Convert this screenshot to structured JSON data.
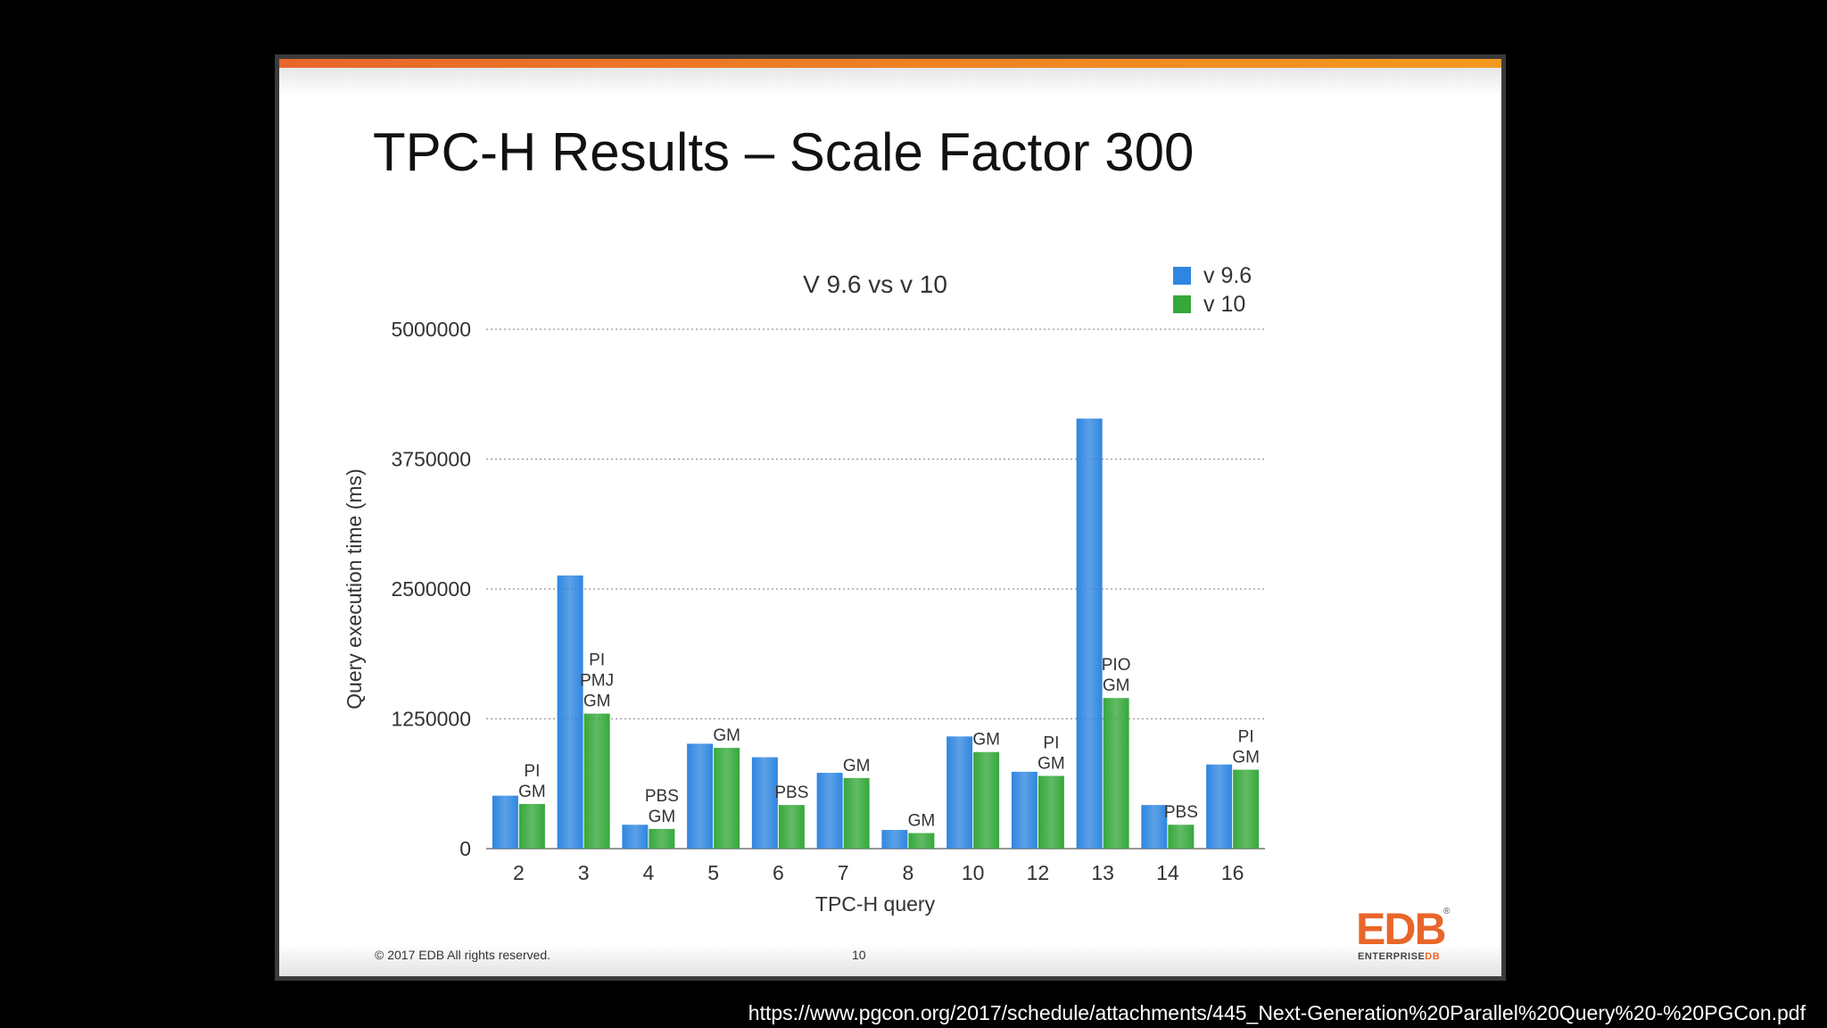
{
  "slide": {
    "title": "TPC-H Results – Scale Factor 300",
    "footer_copyright": "© 2017 EDB All rights reserved.",
    "page_number": "10",
    "logo": {
      "main_text": "EDB",
      "sub_text_prefix": "ENTERPRISE",
      "sub_text_suffix": "DB",
      "registered_mark": "®"
    }
  },
  "source_url": "https://www.pgcon.org/2017/schedule/attachments/445_Next-Generation%20Parallel%20Query%20-%20PGCon.pdf",
  "colors": {
    "v96": "#2f86e0",
    "v10": "#35a83a",
    "accent": "#e8662a"
  },
  "chart_data": {
    "type": "bar",
    "title": "V 9.6 vs v 10",
    "xlabel": "TPC-H  query",
    "ylabel": "Query execution time (ms)",
    "ylim": [
      0,
      5000000
    ],
    "yticks": [
      0,
      1250000,
      2500000,
      3750000,
      5000000
    ],
    "ytick_labels": [
      "0",
      "1250000",
      "2500000",
      "3750000",
      "5000000"
    ],
    "grid": true,
    "legend_position": "top-right",
    "categories": [
      "2",
      "3",
      "4",
      "5",
      "6",
      "7",
      "8",
      "10",
      "12",
      "13",
      "14",
      "16"
    ],
    "series": [
      {
        "name": "v 9.6",
        "values": [
          510000,
          2630000,
          230000,
          1010000,
          880000,
          730000,
          180000,
          1080000,
          740000,
          4140000,
          420000,
          810000
        ]
      },
      {
        "name": "v 10",
        "values": [
          430000,
          1300000,
          190000,
          970000,
          420000,
          680000,
          150000,
          930000,
          700000,
          1450000,
          230000,
          760000
        ]
      }
    ],
    "annotations": [
      [
        "PI",
        "GM"
      ],
      [
        "PI",
        "PMJ",
        "GM"
      ],
      [
        "PBS",
        "GM"
      ],
      [
        "GM"
      ],
      [
        "PBS"
      ],
      [
        "GM"
      ],
      [
        "GM"
      ],
      [
        "GM"
      ],
      [
        "PI",
        "GM"
      ],
      [
        "PIO",
        "GM"
      ],
      [
        "PBS"
      ],
      [
        "PI",
        "GM"
      ]
    ]
  }
}
